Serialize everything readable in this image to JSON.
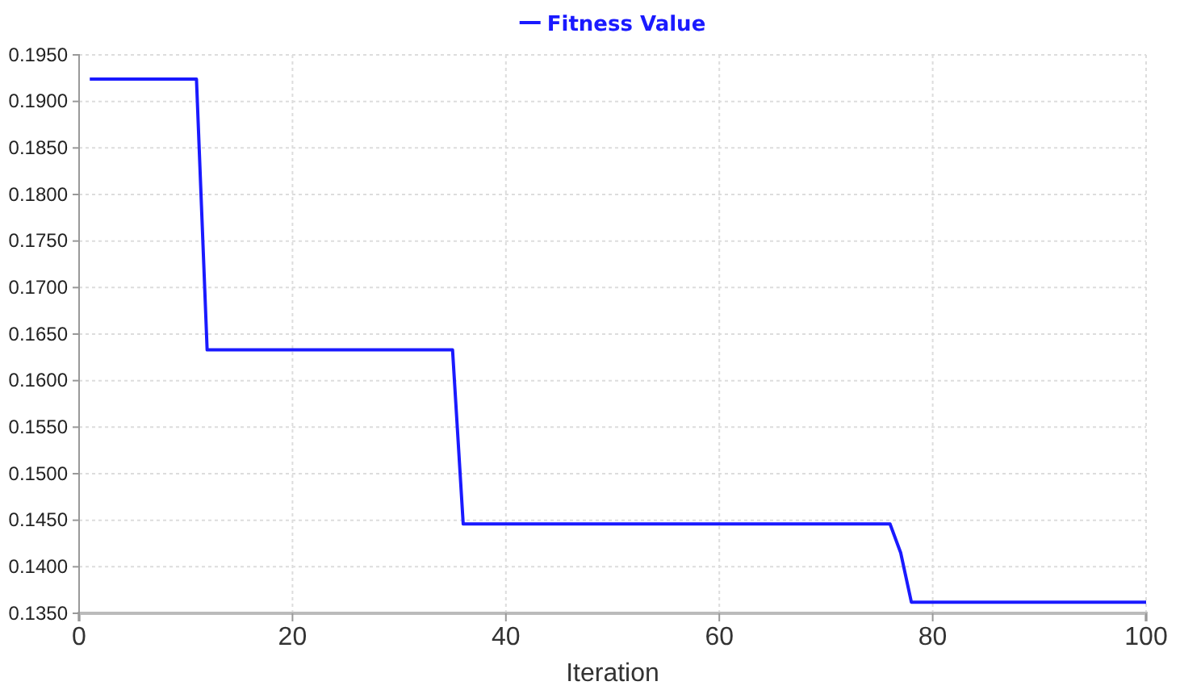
{
  "chart_data": {
    "type": "line",
    "xlabel": "Iteration",
    "x": [
      1,
      11,
      12,
      35,
      36,
      76,
      77,
      78,
      100
    ],
    "series": [
      {
        "name": "Fitness Value",
        "color": "#1a1aff",
        "values": [
          0.1924,
          0.1924,
          0.1633,
          0.1633,
          0.1446,
          0.1446,
          0.1415,
          0.1362,
          0.1362
        ]
      }
    ],
    "xlim": [
      0,
      100
    ],
    "xticks": [
      0,
      20,
      40,
      60,
      80,
      100
    ],
    "ylim": [
      0.135,
      0.195
    ],
    "yticks": [
      {
        "value": 0.135,
        "label": "0.1350"
      },
      {
        "value": 0.14,
        "label": "0.1400"
      },
      {
        "value": 0.145,
        "label": "0.1450"
      },
      {
        "value": 0.15,
        "label": "0.1500"
      },
      {
        "value": 0.155,
        "label": "0.1550"
      },
      {
        "value": 0.16,
        "label": "0.1600"
      },
      {
        "value": 0.165,
        "label": "0.1650"
      },
      {
        "value": 0.17,
        "label": "0.1700"
      },
      {
        "value": 0.175,
        "label": "0.1750"
      },
      {
        "value": 0.18,
        "label": "0.1800"
      },
      {
        "value": 0.185,
        "label": "0.1850"
      },
      {
        "value": 0.19,
        "label": "0.1900"
      },
      {
        "value": 0.195,
        "label": "0.1950"
      }
    ],
    "grid": true,
    "legend": "top",
    "marker": "none",
    "line_style": "solid"
  }
}
